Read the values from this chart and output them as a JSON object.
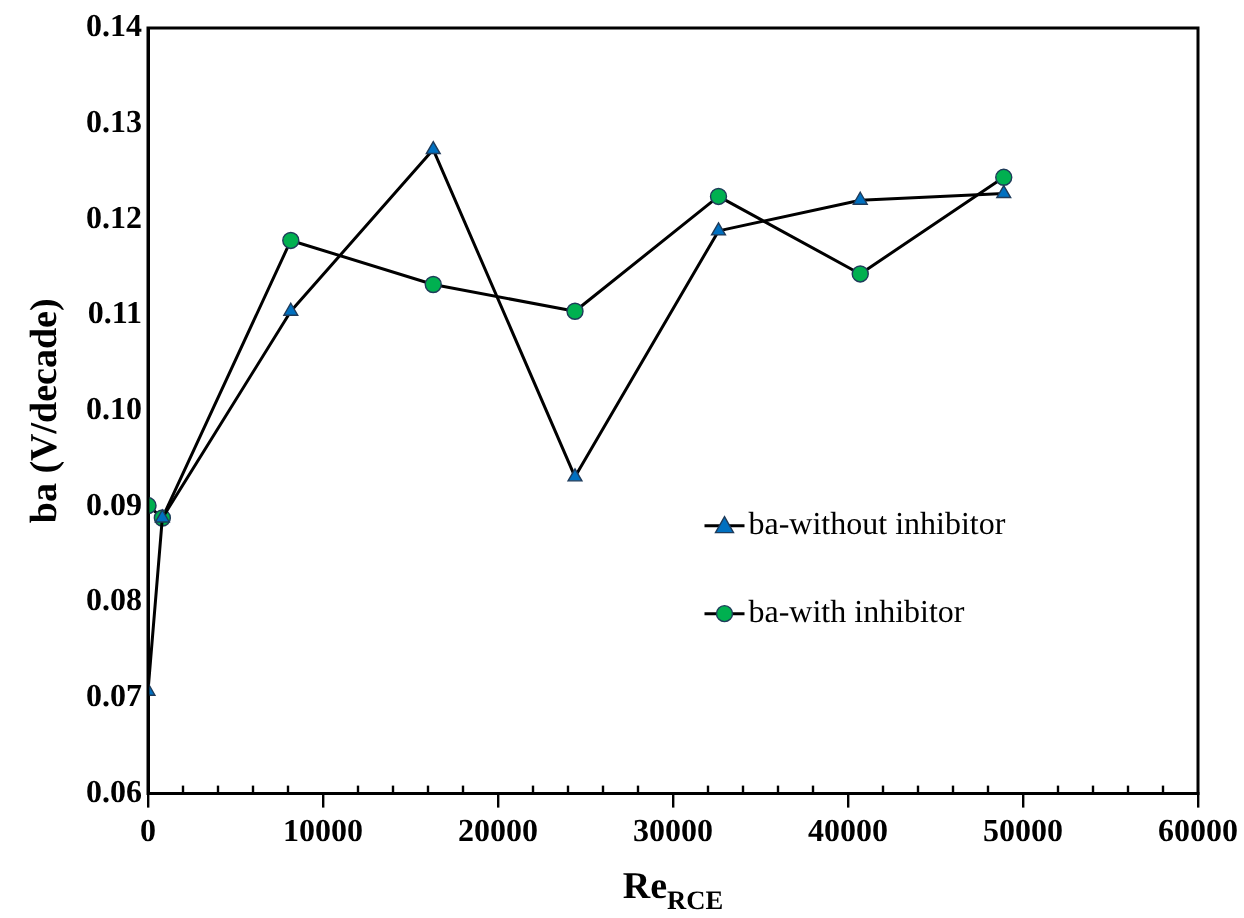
{
  "chart_data": {
    "type": "line",
    "xlabel": "Re$_{RCE}$",
    "ylabel": "ba (V/decade)",
    "x": [
      0,
      820,
      8160,
      16300,
      24400,
      32600,
      40700,
      48900
    ],
    "series": [
      {
        "name": "ba-without inhibitor",
        "color": "#0070c0",
        "marker": "triangle",
        "values": [
          0.0707,
          0.0888,
          0.1104,
          0.1273,
          0.0931,
          0.1188,
          0.122,
          0.1227
        ]
      },
      {
        "name": "ba-with inhibitor",
        "color": "#00b050",
        "marker": "circle",
        "values": [
          0.0901,
          0.0888,
          0.1178,
          0.1132,
          0.1104,
          0.1224,
          0.1143,
          0.1244
        ]
      }
    ],
    "xlim": [
      0,
      60000
    ],
    "xticks": [
      0,
      10000,
      20000,
      30000,
      40000,
      50000,
      60000
    ],
    "ylim": [
      0.06,
      0.14
    ],
    "yticks": [
      0.06,
      0.07,
      0.08,
      0.09,
      {
        "value": 0.1,
        "label": "0.10"
      },
      0.11,
      0.12,
      0.13,
      0.14
    ],
    "grid": false,
    "legend": "right",
    "line_style": "solid"
  }
}
